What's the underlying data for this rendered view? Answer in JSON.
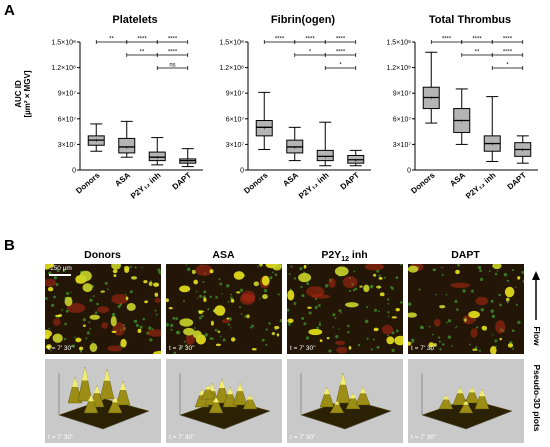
{
  "panelA": {
    "letter": "A",
    "ylabel_line1": "AUC ID",
    "ylabel_line2": "[µm² × MGV]",
    "yticks": [
      "1.5×10⁸",
      "1.2×10⁸",
      "9×10⁷",
      "6×10⁷",
      "3×10⁷",
      "0"
    ],
    "categories": [
      "Donors",
      "ASA",
      "P2Y₁₂ inh",
      "DAPT"
    ]
  },
  "chart_data": [
    {
      "type": "box",
      "title": "Platelets",
      "xlabel": "",
      "ylabel": "AUC ID [µm² × MGV]",
      "ylim": [
        0,
        150000000
      ],
      "categories": [
        "Donors",
        "ASA",
        "P2Y₁₂ inh",
        "DAPT"
      ],
      "boxes": [
        {
          "min": 22000000,
          "q1": 29000000,
          "median": 35000000,
          "q3": 40000000,
          "max": 54000000,
          "mean": 35000000
        },
        {
          "min": 15000000,
          "q1": 20000000,
          "median": 27000000,
          "q3": 37000000,
          "max": 57000000,
          "mean": 27000000
        },
        {
          "min": 6000000,
          "q1": 11000000,
          "median": 15000000,
          "q3": 21000000,
          "max": 38000000,
          "mean": 15000000
        },
        {
          "min": 4000000,
          "q1": 8000000,
          "median": 11000000,
          "q3": 13000000,
          "max": 25000000,
          "mean": 11000000
        }
      ],
      "significance": [
        {
          "from": 0,
          "to": 1,
          "label": "**"
        },
        {
          "from": 1,
          "to": 2,
          "label": "****"
        },
        {
          "from": 2,
          "to": 3,
          "label": "****"
        },
        {
          "from": 1,
          "to": 3,
          "label": "**"
        },
        {
          "from": 2,
          "to": 3,
          "label": "****"
        },
        {
          "from": 2,
          "to": 3,
          "label": "ns"
        }
      ]
    },
    {
      "type": "box",
      "title": "Fibrin(ogen)",
      "xlabel": "",
      "ylabel": "",
      "ylim": [
        0,
        150000000
      ],
      "categories": [
        "Donors",
        "ASA",
        "P2Y₁₂ inh",
        "DAPT"
      ],
      "boxes": [
        {
          "min": 24000000,
          "q1": 40000000,
          "median": 50000000,
          "q3": 58000000,
          "max": 91000000,
          "mean": 50000000
        },
        {
          "min": 11000000,
          "q1": 20000000,
          "median": 27000000,
          "q3": 35000000,
          "max": 50000000,
          "mean": 27000000
        },
        {
          "min": 5000000,
          "q1": 11000000,
          "median": 16000000,
          "q3": 23000000,
          "max": 56000000,
          "mean": 16000000
        },
        {
          "min": 5000000,
          "q1": 8000000,
          "median": 12000000,
          "q3": 17000000,
          "max": 23000000,
          "mean": 12000000
        }
      ],
      "significance": [
        {
          "from": 0,
          "to": 1,
          "label": "****"
        },
        {
          "from": 1,
          "to": 2,
          "label": "****"
        },
        {
          "from": 2,
          "to": 3,
          "label": "****"
        },
        {
          "from": 1,
          "to": 3,
          "label": "*"
        },
        {
          "from": 2,
          "to": 3,
          "label": "****"
        },
        {
          "from": 2,
          "to": 3,
          "label": "*"
        }
      ]
    },
    {
      "type": "box",
      "title": "Total Thrombus",
      "xlabel": "",
      "ylabel": "",
      "ylim": [
        0,
        150000000
      ],
      "categories": [
        "Donors",
        "ASA",
        "P2Y₁₂ inh",
        "DAPT"
      ],
      "boxes": [
        {
          "min": 55000000,
          "q1": 72000000,
          "median": 85000000,
          "q3": 97000000,
          "max": 138000000,
          "mean": 85000000
        },
        {
          "min": 30000000,
          "q1": 44000000,
          "median": 58000000,
          "q3": 72000000,
          "max": 95000000,
          "mean": 58000000
        },
        {
          "min": 10000000,
          "q1": 22000000,
          "median": 31000000,
          "q3": 40000000,
          "max": 86000000,
          "mean": 31000000
        },
        {
          "min": 8000000,
          "q1": 16000000,
          "median": 24000000,
          "q3": 32000000,
          "max": 40000000,
          "mean": 24000000
        }
      ],
      "significance": [
        {
          "from": 0,
          "to": 1,
          "label": "****"
        },
        {
          "from": 1,
          "to": 2,
          "label": "****"
        },
        {
          "from": 2,
          "to": 3,
          "label": "****"
        },
        {
          "from": 1,
          "to": 3,
          "label": "**"
        },
        {
          "from": 2,
          "to": 3,
          "label": "****"
        },
        {
          "from": 2,
          "to": 3,
          "label": "*"
        }
      ]
    }
  ],
  "panelB": {
    "letter": "B",
    "columns": [
      {
        "label": "Donors"
      },
      {
        "label": "ASA"
      },
      {
        "label": "P2Y",
        "sub": "12",
        "tail": " inh"
      },
      {
        "label": "DAPT"
      }
    ],
    "scale_bar": "150 µm",
    "time": "t = 7' 30''",
    "flow_label": "Flow",
    "pseudo_label": "Pseudo-3D plots"
  }
}
